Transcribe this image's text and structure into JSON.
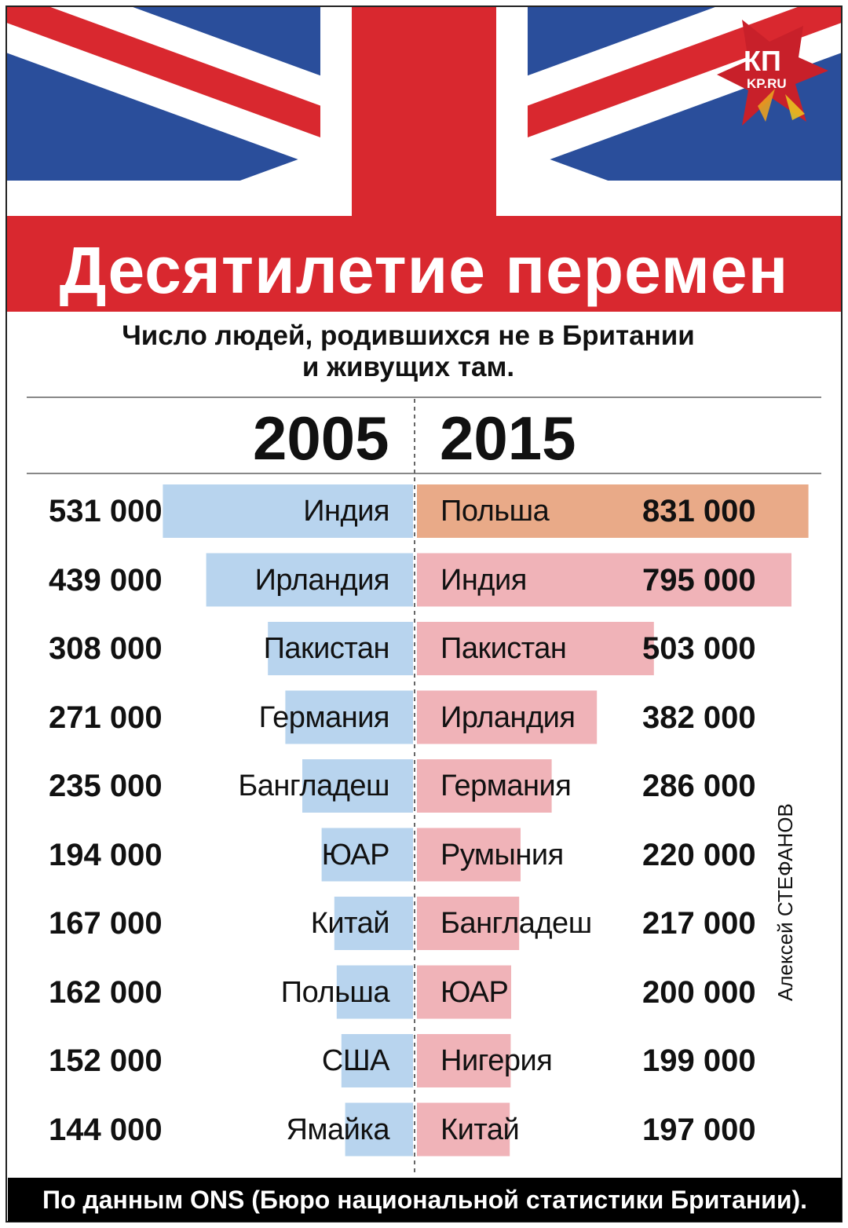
{
  "title": "Десятилетие перемен",
  "subtitle_line1": "Число людей, родившихся не в Британии",
  "subtitle_line2": "и живущих там.",
  "logo": {
    "brand": "КП",
    "site": "KP.RU"
  },
  "author": "Алексей СТЕФАНОВ",
  "footer": "По данным ONS (Бюро национальной статистики Британии).",
  "colors": {
    "flag_blue": "#2a4e9b",
    "flag_red": "#d9282f",
    "bar_2005": "#b8d4ee",
    "bar_2015": "#f0b3b8",
    "bar_2015_top": "#e9aa88",
    "footer_bg": "#000000"
  },
  "chart_data": {
    "type": "bar",
    "series": [
      {
        "name": "2005",
        "categories": [
          "Индия",
          "Ирландия",
          "Пакистан",
          "Германия",
          "Бангладеш",
          "ЮАР",
          "Китай",
          "Польша",
          "США",
          "Ямайка"
        ],
        "values": [
          531000,
          439000,
          308000,
          271000,
          235000,
          194000,
          167000,
          162000,
          152000,
          144000
        ],
        "labels": [
          "531 000",
          "439 000",
          "308 000",
          "271 000",
          "235 000",
          "194 000",
          "167 000",
          "162 000",
          "152 000",
          "144 000"
        ]
      },
      {
        "name": "2015",
        "categories": [
          "Польша",
          "Индия",
          "Пакистан",
          "Ирландия",
          "Германия",
          "Румыния",
          "Бангладеш",
          "ЮАР",
          "Нигерия",
          "Китай"
        ],
        "values": [
          831000,
          795000,
          503000,
          382000,
          286000,
          220000,
          217000,
          200000,
          199000,
          197000
        ],
        "labels": [
          "831 000",
          "795 000",
          "503 000",
          "382 000",
          "286 000",
          "220 000",
          "217 000",
          "200 000",
          "199 000",
          "197 000"
        ]
      }
    ]
  }
}
